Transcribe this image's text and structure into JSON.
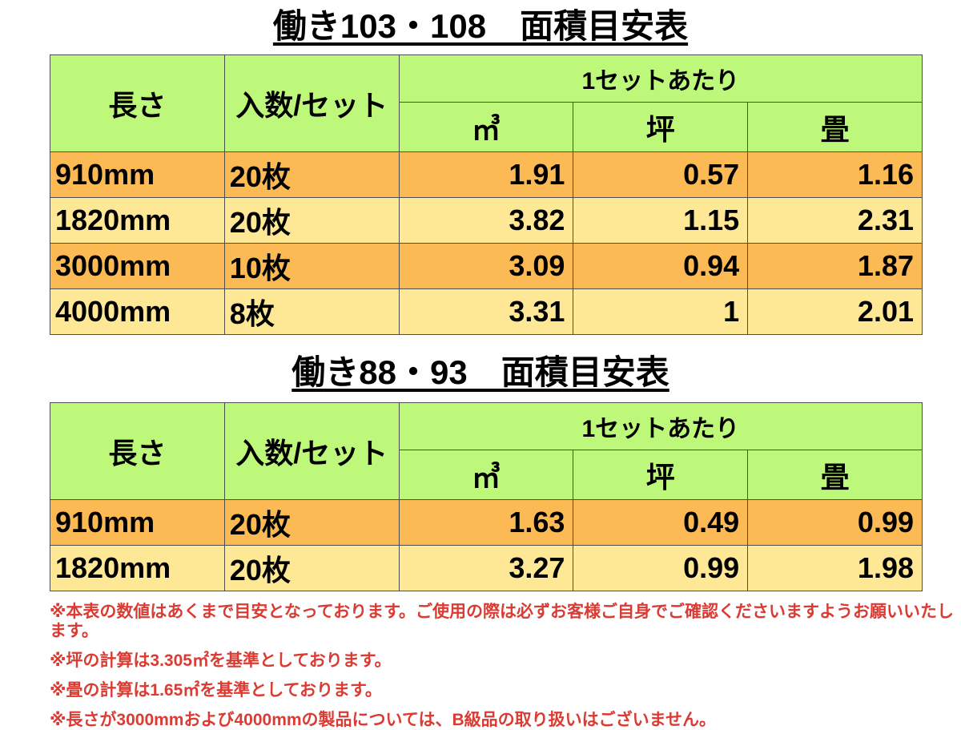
{
  "colors": {
    "header_green": "#bdf87a",
    "row_orange": "#fcba54",
    "row_yellow": "#fee795",
    "border": "#4d4d4d",
    "note_red": "#da3b33",
    "text_black": "#000000"
  },
  "tables": [
    {
      "title": "働き103・108　面積目安表",
      "headers": {
        "length": "長さ",
        "count_per_set": "入数/セット",
        "per_set_group": "1セットあたり",
        "units": [
          "㎥",
          "坪",
          "畳"
        ]
      },
      "rows": [
        {
          "length": "910mm",
          "count": "20枚",
          "m3": "1.91",
          "tsubo": "0.57",
          "tatami": "1.16"
        },
        {
          "length": "1820mm",
          "count": "20枚",
          "m3": "3.82",
          "tsubo": "1.15",
          "tatami": "2.31"
        },
        {
          "length": "3000mm",
          "count": "10枚",
          "m3": "3.09",
          "tsubo": "0.94",
          "tatami": "1.87"
        },
        {
          "length": "4000mm",
          "count": "8枚",
          "m3": "3.31",
          "tsubo": "1",
          "tatami": "2.01"
        }
      ]
    },
    {
      "title": "働き88・93　面積目安表",
      "headers": {
        "length": "長さ",
        "count_per_set": "入数/セット",
        "per_set_group": "1セットあたり",
        "units": [
          "㎥",
          "坪",
          "畳"
        ]
      },
      "rows": [
        {
          "length": "910mm",
          "count": "20枚",
          "m3": "1.63",
          "tsubo": "0.49",
          "tatami": "0.99"
        },
        {
          "length": "1820mm",
          "count": "20枚",
          "m3": "3.27",
          "tsubo": "0.99",
          "tatami": "1.98"
        }
      ]
    }
  ],
  "notes": [
    "※本表の数値はあくまで目安となっております。ご使用の際は必ずお客様ご自身でご確認くださいますようお願いいたします。",
    "※坪の計算は3.305㎡を基準としております。",
    "※畳の計算は1.65㎡を基準としております。",
    "※長さが3000mmおよび4000mmの製品については、B級品の取り扱いはございません。"
  ],
  "chart_data": [
    {
      "type": "table",
      "title": "働き103・108　面積目安表",
      "columns": [
        "長さ",
        "入数/セット",
        "㎥",
        "坪",
        "畳"
      ],
      "column_group": {
        "label": "1セットあたり",
        "spans": [
          "㎥",
          "坪",
          "畳"
        ]
      },
      "rows": [
        [
          "910mm",
          "20枚",
          1.91,
          0.57,
          1.16
        ],
        [
          "1820mm",
          "20枚",
          3.82,
          1.15,
          2.31
        ],
        [
          "3000mm",
          "10枚",
          3.09,
          0.94,
          1.87
        ],
        [
          "4000mm",
          "8枚",
          3.31,
          1,
          2.01
        ]
      ]
    },
    {
      "type": "table",
      "title": "働き88・93　面積目安表",
      "columns": [
        "長さ",
        "入数/セット",
        "㎥",
        "坪",
        "畳"
      ],
      "column_group": {
        "label": "1セットあたり",
        "spans": [
          "㎥",
          "坪",
          "畳"
        ]
      },
      "rows": [
        [
          "910mm",
          "20枚",
          1.63,
          0.49,
          0.99
        ],
        [
          "1820mm",
          "20枚",
          3.27,
          0.99,
          1.98
        ]
      ]
    }
  ]
}
